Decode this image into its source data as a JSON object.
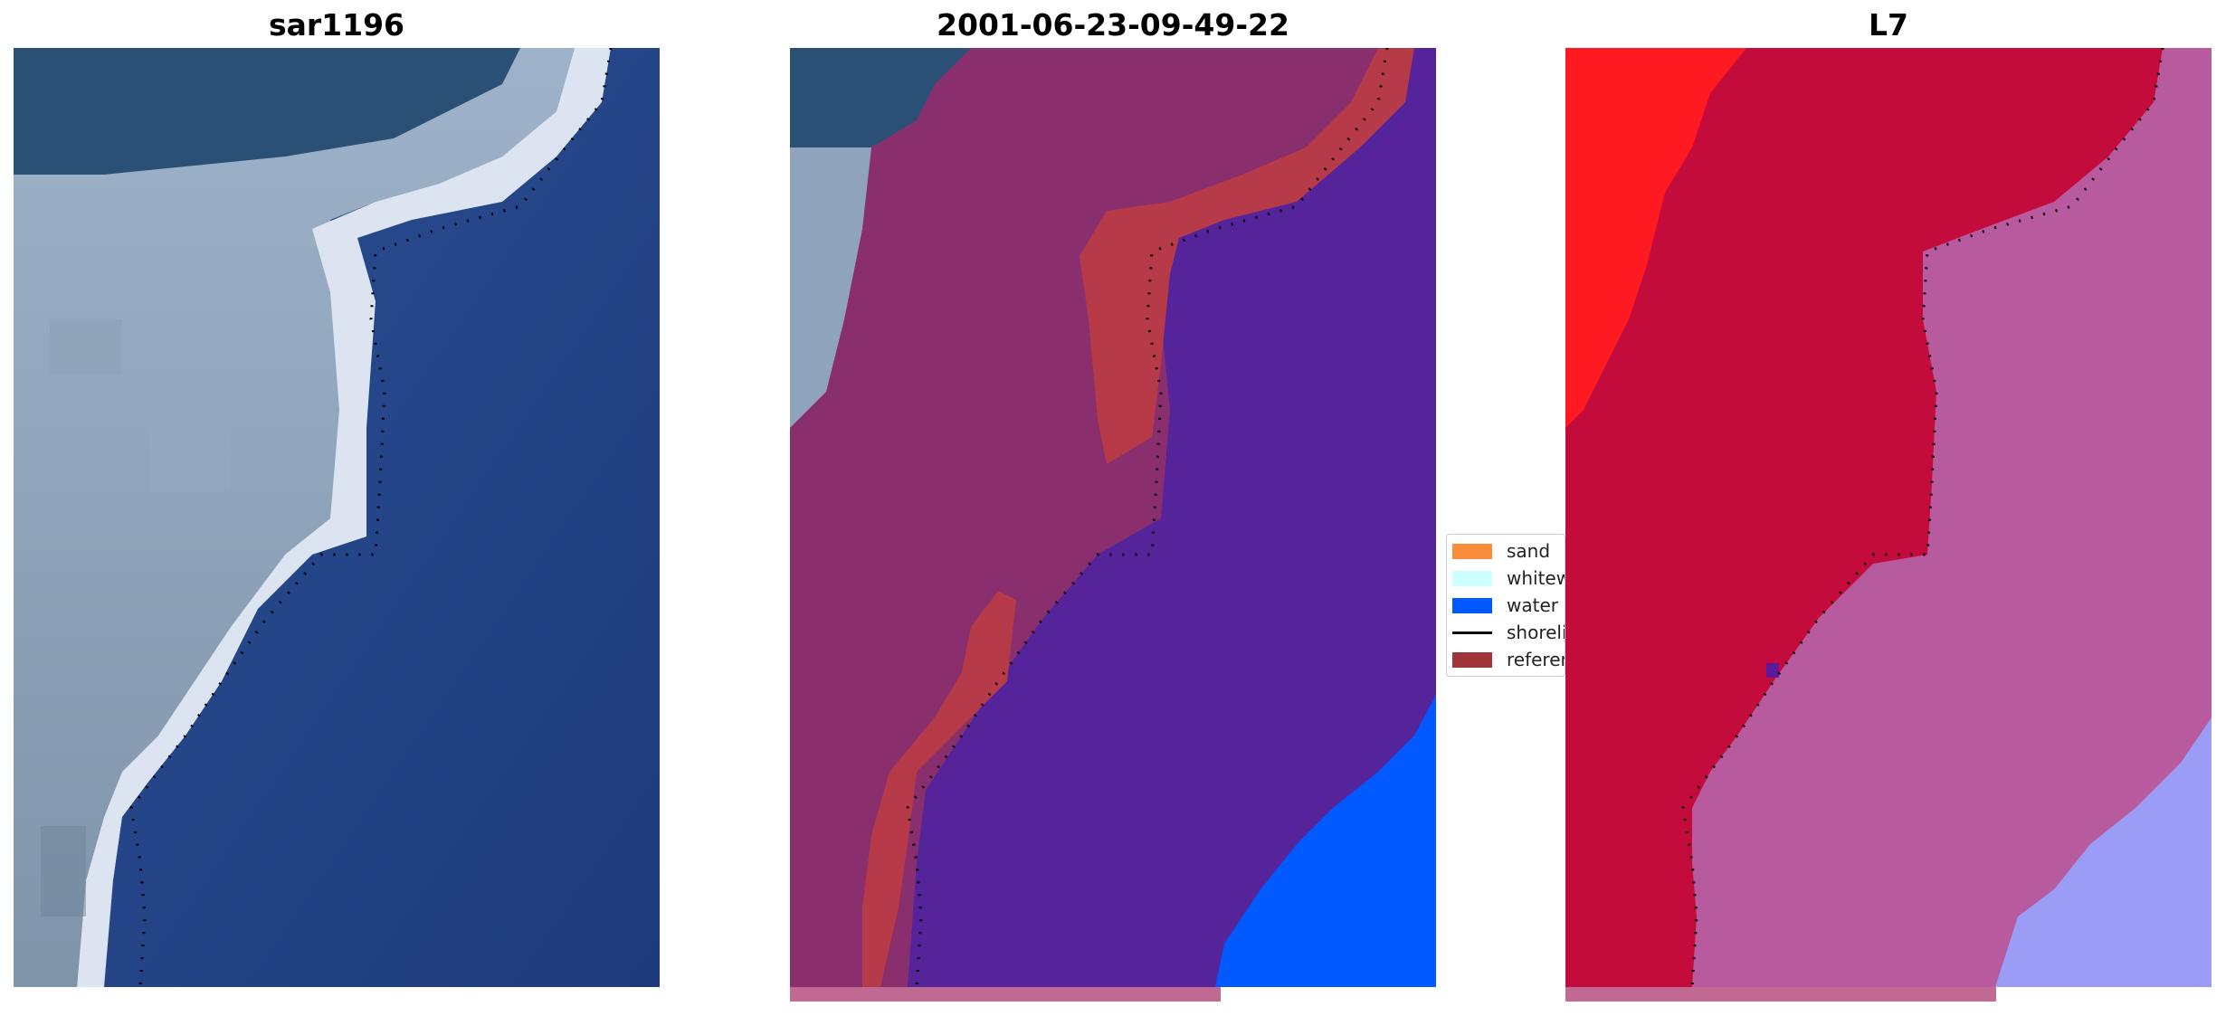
{
  "panels": {
    "left": {
      "title": "sar1196"
    },
    "middle": {
      "title": "2001-06-23-09-49-22"
    },
    "right": {
      "title": "L7"
    }
  },
  "legend": {
    "items": [
      {
        "label": "sand",
        "color": "#f98d3b"
      },
      {
        "label": "whitewater",
        "color": "#ccffff"
      },
      {
        "label": "water",
        "color": "#005aff"
      },
      {
        "label": "shoreline",
        "color": "#000000"
      },
      {
        "label": "reference",
        "color": "#a0343b"
      }
    ]
  },
  "colors": {
    "sea_dark": "#1f3f80",
    "surf_white": "#d6e0ee",
    "land_grey": "#8fa4bc",
    "class_overlay": "#8a2f6e",
    "water_class": "#55239a",
    "water_bright": "#005aff",
    "reference": "#b73a48",
    "l7_red": "#c30c3b",
    "l7_bright_red": "#ff1a22",
    "l7_pink": "#b75a9e",
    "l7_lavender": "#9b9cf6",
    "bottom_bar": "#c06a93"
  }
}
